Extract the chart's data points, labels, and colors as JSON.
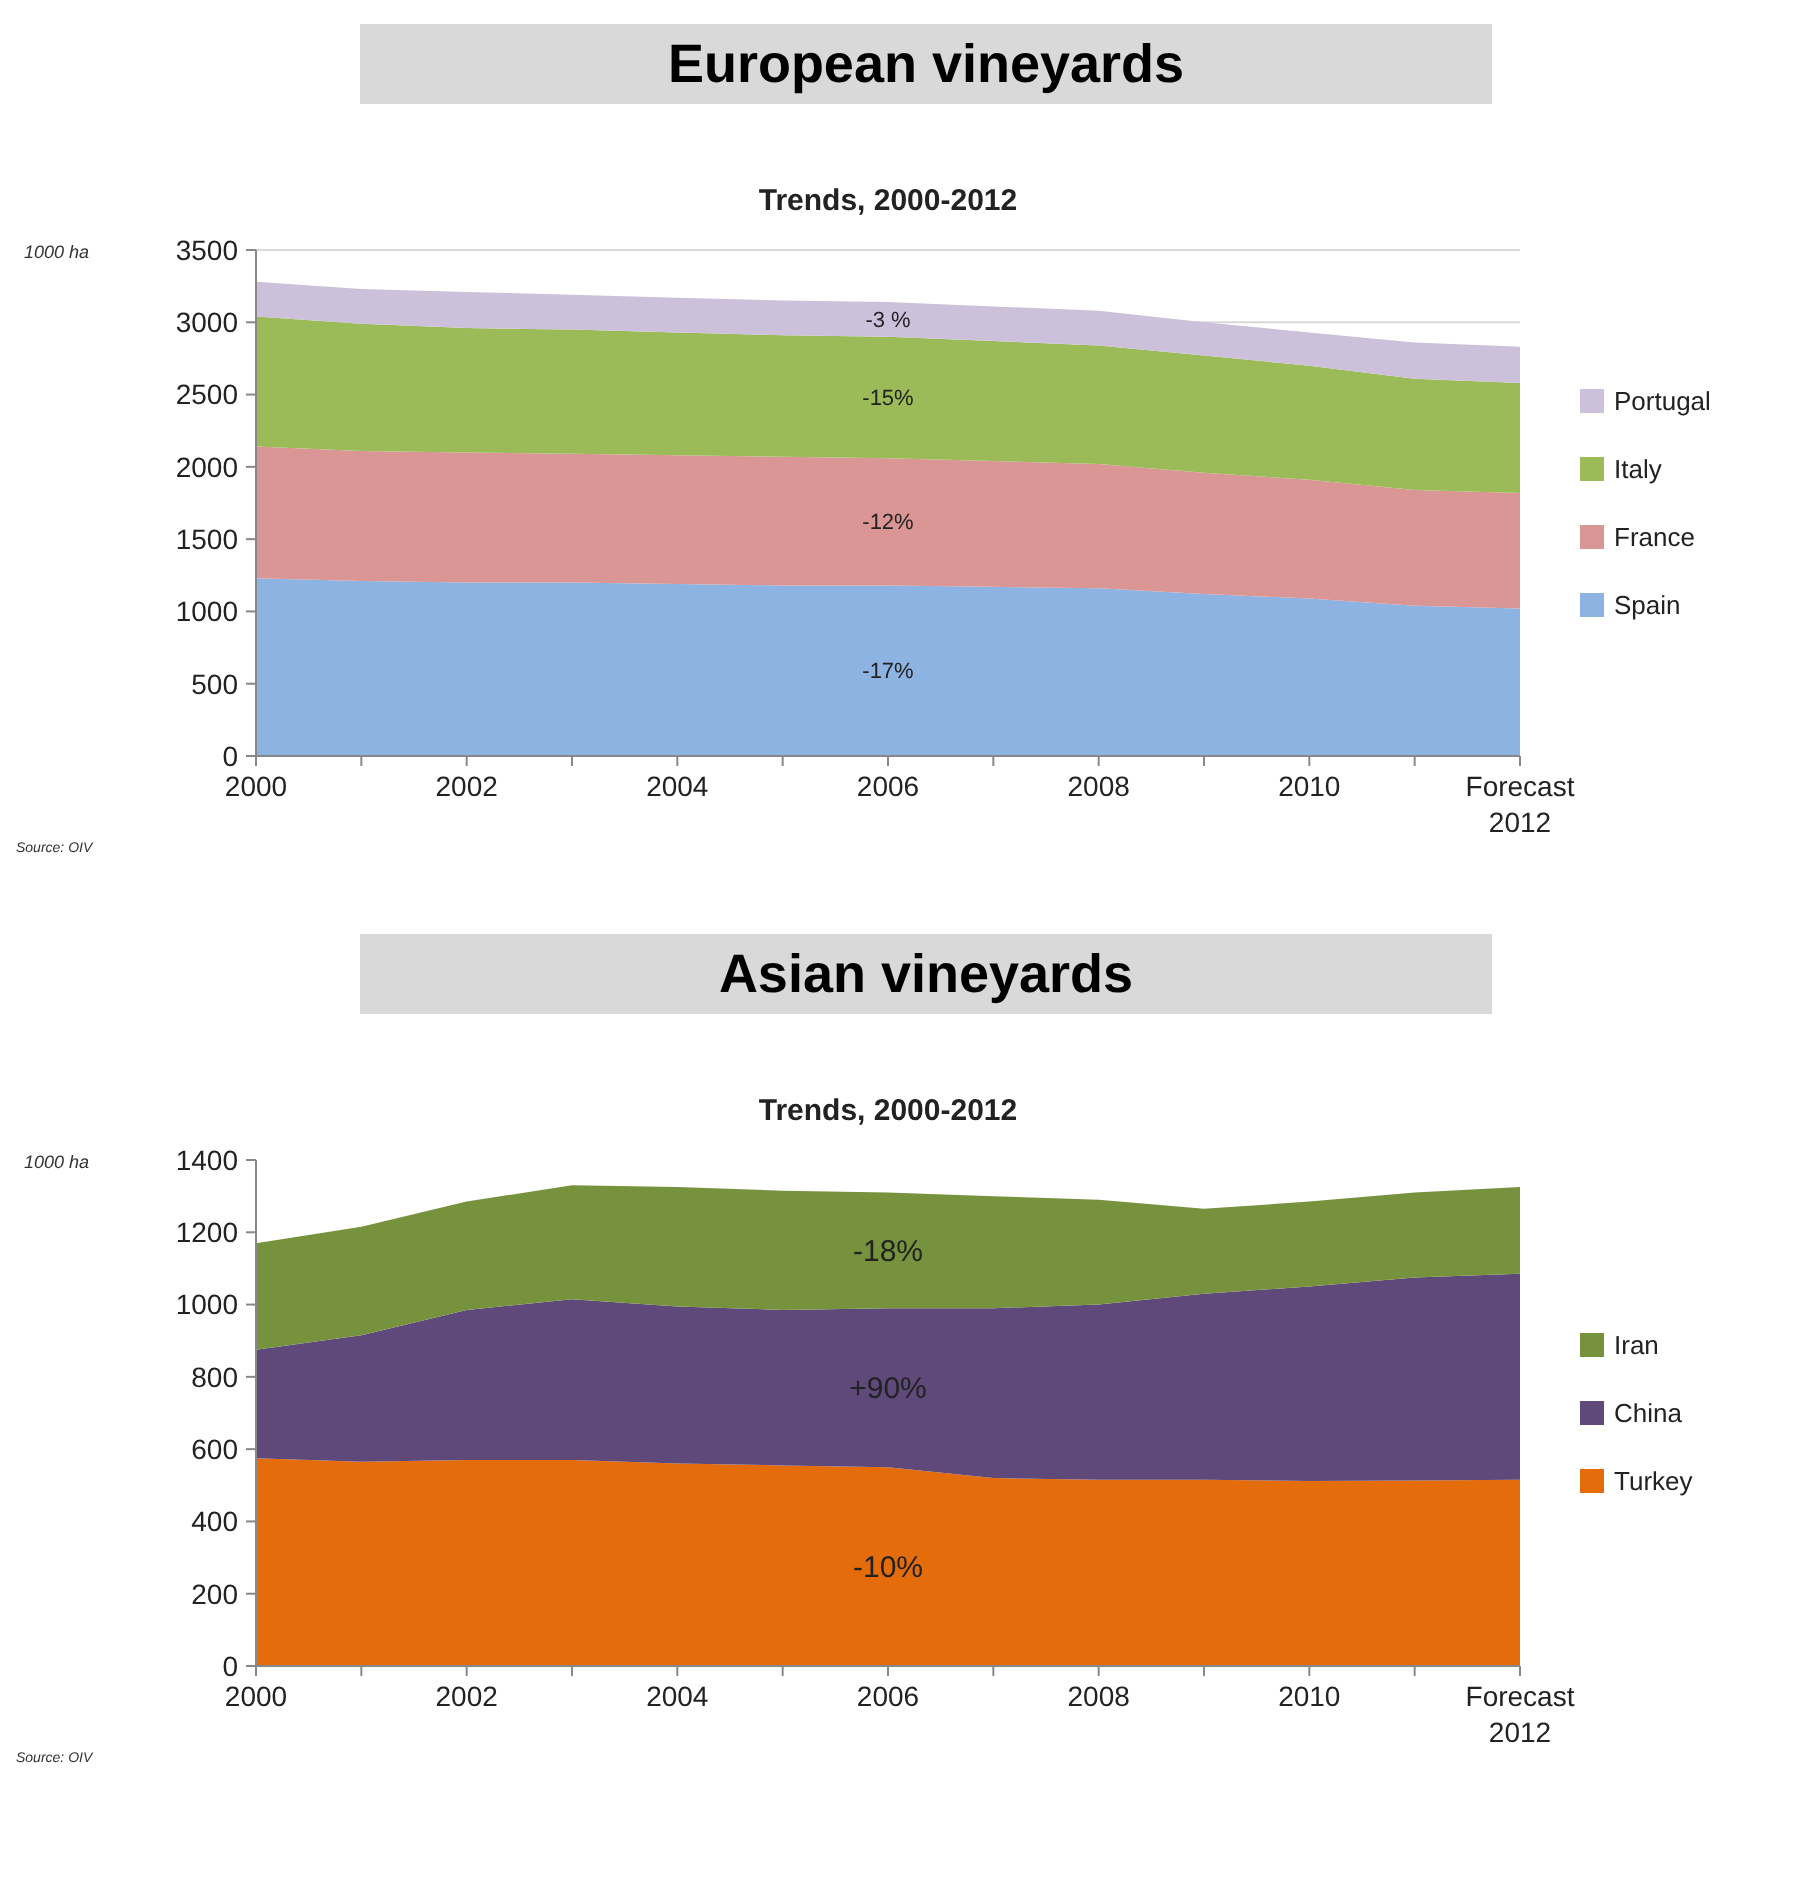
{
  "chart_data": [
    {
      "type": "area",
      "title": "European vineyards",
      "subtitle": "Trends, 2000-2012",
      "ylabel": "1000 ha",
      "stacked": true,
      "grid": "y",
      "legend": "right",
      "categories": [
        "2000",
        null,
        "2002",
        null,
        "2004",
        null,
        "2006",
        null,
        "2008",
        null,
        "2010",
        null,
        "Forecast 2012"
      ],
      "ylim": [
        0,
        3500
      ],
      "yticks": [
        0,
        500,
        1000,
        1500,
        2000,
        2500,
        3000,
        3500
      ],
      "series": [
        {
          "name": "Spain",
          "color": "#8db3e2",
          "values": [
            1230,
            1210,
            1200,
            1200,
            1190,
            1180,
            1180,
            1170,
            1160,
            1120,
            1090,
            1040,
            1020
          ]
        },
        {
          "name": "France",
          "color": "#d99694",
          "values": [
            910,
            900,
            900,
            890,
            890,
            890,
            880,
            870,
            860,
            840,
            820,
            800,
            800
          ]
        },
        {
          "name": "Italy",
          "color": "#9bbb59",
          "values": [
            900,
            880,
            860,
            860,
            850,
            840,
            840,
            830,
            820,
            810,
            790,
            770,
            760
          ]
        },
        {
          "name": "Portugal",
          "color": "#ccc0da",
          "values": [
            240,
            240,
            250,
            240,
            240,
            240,
            240,
            240,
            240,
            230,
            230,
            250,
            250
          ]
        }
      ],
      "annotations": [
        "-3 %",
        "-15%",
        "-12%",
        "-17%",
        "Source: OIV"
      ]
    },
    {
      "type": "area",
      "title": "Asian vineyards",
      "subtitle": "Trends, 2000-2012",
      "ylabel": "1000 ha",
      "stacked": true,
      "legend": "right",
      "categories": [
        "2000",
        null,
        "2002",
        null,
        "2004",
        null,
        "2006",
        null,
        "2008",
        null,
        "2010",
        null,
        "Forecast 2012"
      ],
      "ylim": [
        0,
        1400
      ],
      "yticks": [
        0,
        200,
        400,
        600,
        800,
        1000,
        1200,
        1400
      ],
      "series": [
        {
          "name": "Turkey",
          "color": "#e46c0a",
          "values": [
            575,
            565,
            570,
            570,
            560,
            555,
            550,
            520,
            515,
            515,
            512,
            513,
            515
          ]
        },
        {
          "name": "China",
          "color": "#5f497a",
          "values": [
            300,
            350,
            415,
            445,
            435,
            430,
            440,
            470,
            485,
            515,
            538,
            562,
            570
          ]
        },
        {
          "name": "Iran",
          "color": "#76923c",
          "values": [
            295,
            300,
            300,
            315,
            330,
            330,
            320,
            310,
            290,
            235,
            235,
            235,
            240
          ]
        }
      ],
      "annotations": [
        "-18%",
        "+90%",
        "-10%",
        "Source: OIV"
      ]
    }
  ]
}
